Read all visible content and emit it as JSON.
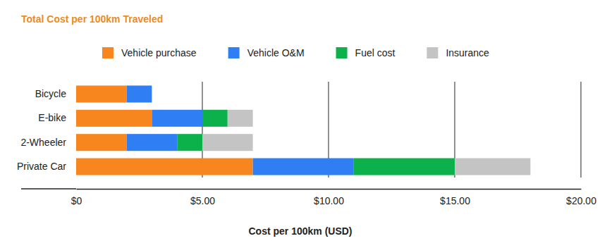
{
  "chart_data": {
    "type": "bar",
    "title": "Total Cost per 100km Traveled",
    "orientation": "horizontal",
    "stacked": true,
    "grid": true,
    "legend": "top",
    "xlabel": "Cost per 100km (USD)",
    "categories": [
      "Bicycle",
      "E-bike",
      "2-Wheeler",
      "Private Car"
    ],
    "series": [
      {
        "name": "Vehicle purchase",
        "color": "#f7861f",
        "values": [
          2,
          3,
          2,
          7
        ]
      },
      {
        "name": "Vehicle O&M",
        "color": "#2f7ef4",
        "values": [
          1,
          2,
          2,
          4
        ]
      },
      {
        "name": "Fuel cost",
        "color": "#0db14b",
        "values": [
          0,
          1,
          1,
          4
        ]
      },
      {
        "name": "Insurance",
        "color": "#c4c4c4",
        "values": [
          0,
          1,
          2,
          3
        ]
      }
    ],
    "xlim": [
      0,
      20
    ],
    "xticks": [
      {
        "value": 0,
        "label": "$0"
      },
      {
        "value": 5,
        "label": "$5.00"
      },
      {
        "value": 10,
        "label": "$10.00"
      },
      {
        "value": 15,
        "label": "$15.00"
      },
      {
        "value": 20,
        "label": "$20.00"
      }
    ]
  }
}
